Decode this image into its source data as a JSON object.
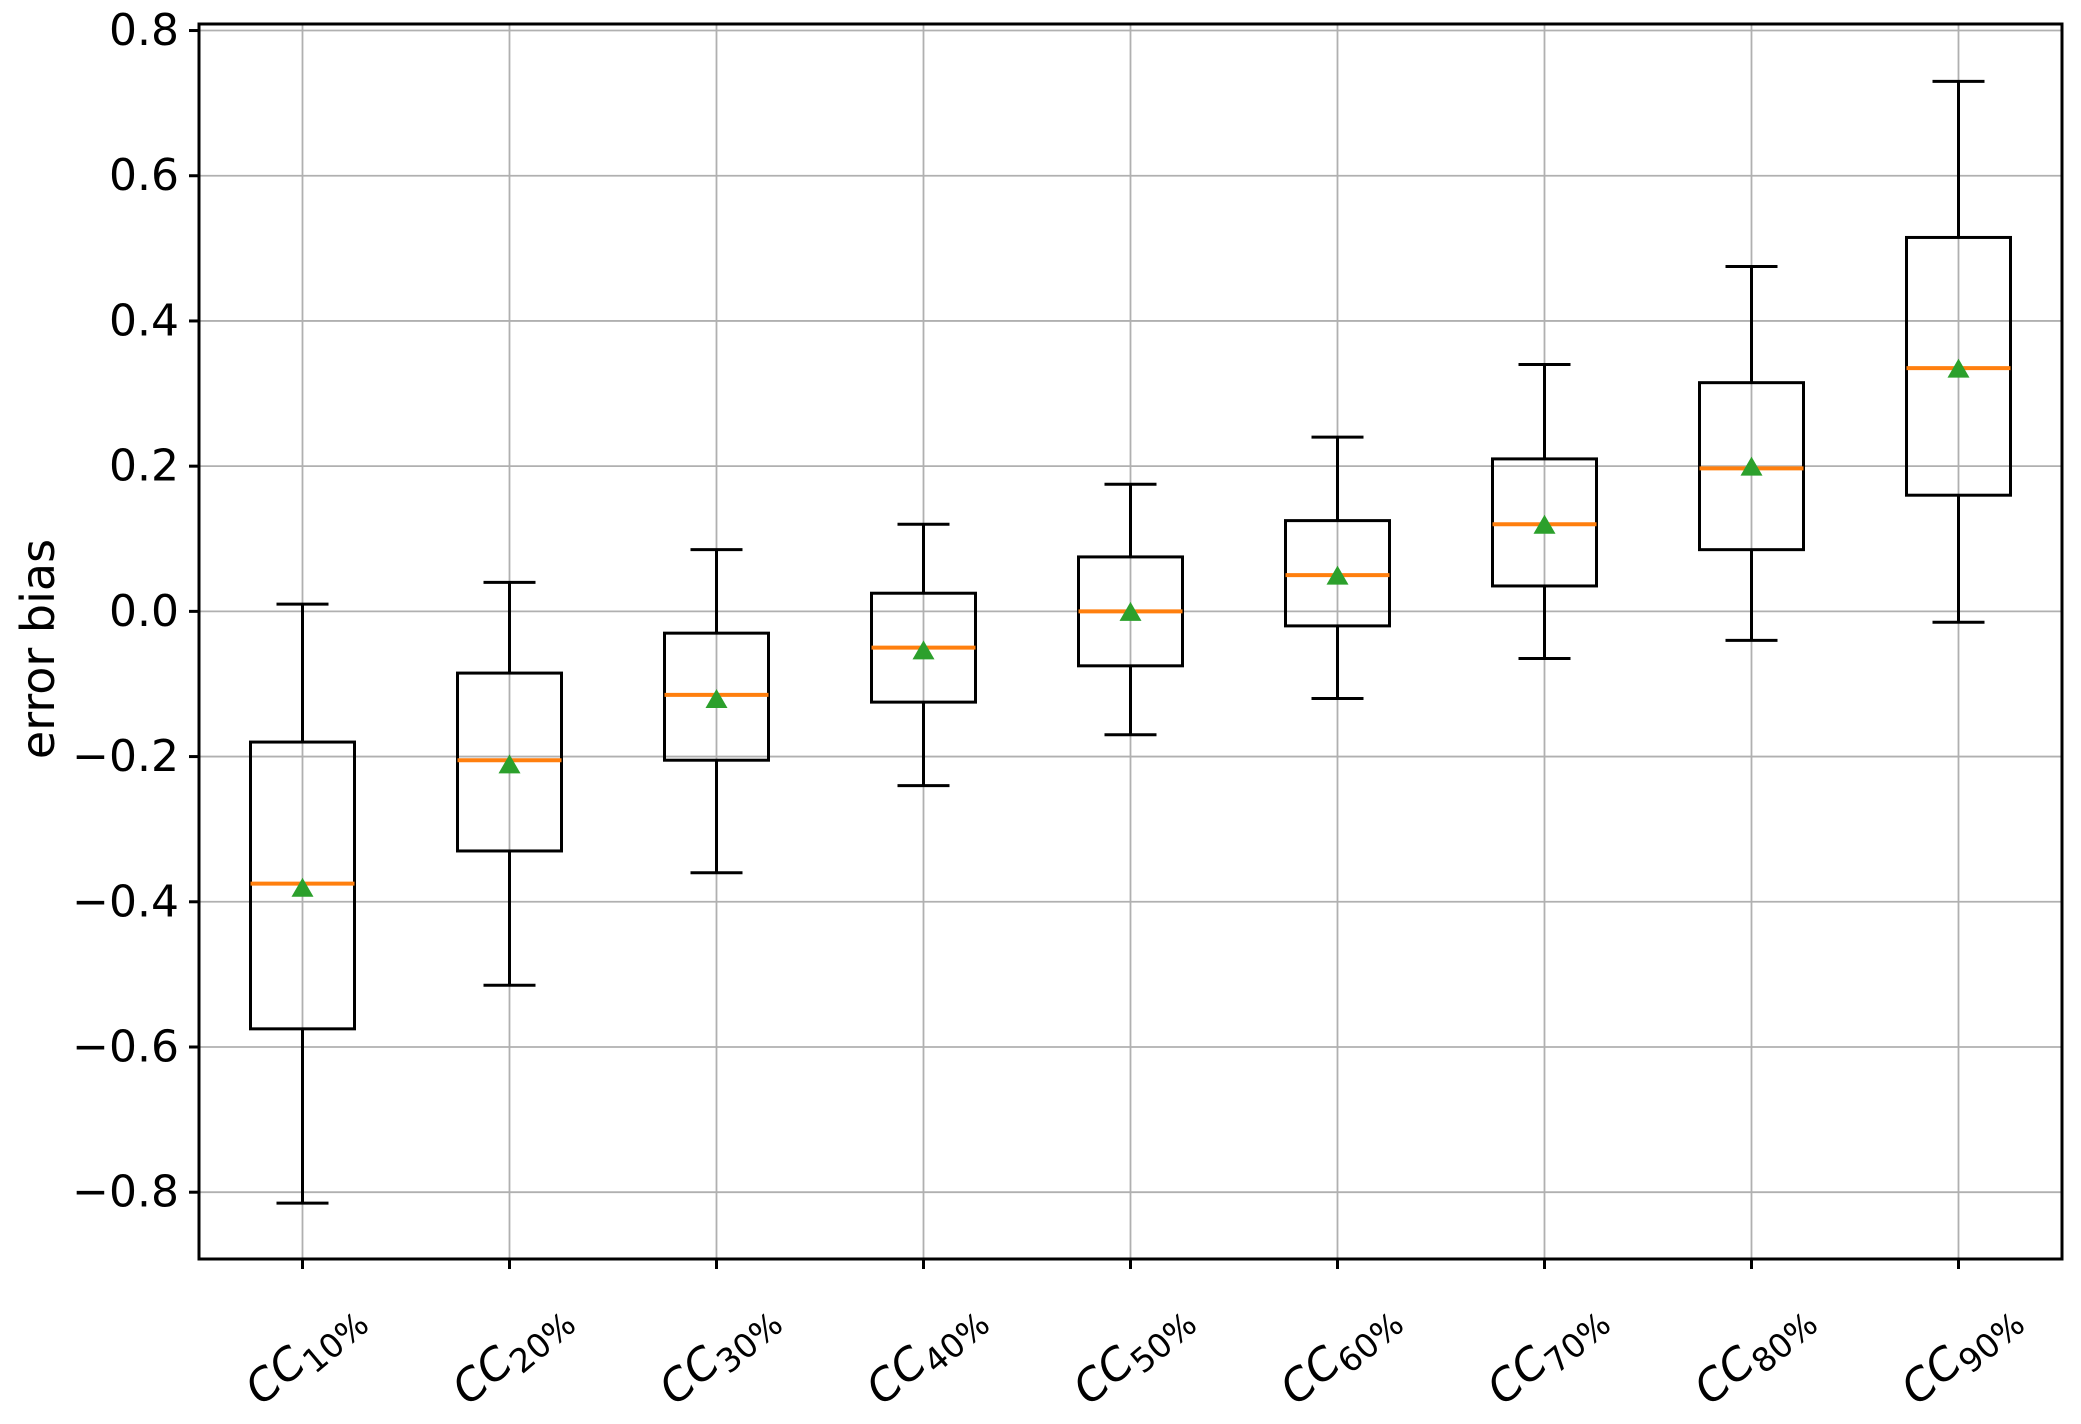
{
  "chart_data": {
    "type": "boxplot",
    "title": "",
    "xlabel": "",
    "ylabel": "error bias",
    "ylim": [
      -0.892,
      0.809
    ],
    "grid": true,
    "legend": null,
    "yticks": [
      0.8,
      0.6,
      0.4,
      0.2,
      0.0,
      -0.2,
      -0.4,
      -0.6,
      -0.8
    ],
    "ytick_labels": [
      "0.8",
      "0.6",
      "0.4",
      "0.2",
      "0.0",
      "−0.2",
      "−0.4",
      "−0.6",
      "−0.8"
    ],
    "categories": [
      {
        "prefix": "CC",
        "sub": "10%"
      },
      {
        "prefix": "CC",
        "sub": "20%"
      },
      {
        "prefix": "CC",
        "sub": "30%"
      },
      {
        "prefix": "CC",
        "sub": "40%"
      },
      {
        "prefix": "CC",
        "sub": "50%"
      },
      {
        "prefix": "CC",
        "sub": "60%"
      },
      {
        "prefix": "CC",
        "sub": "70%"
      },
      {
        "prefix": "CC",
        "sub": "80%"
      },
      {
        "prefix": "CC",
        "sub": "90%"
      }
    ],
    "series": [
      {
        "label": "CC10%",
        "whislo": -0.815,
        "q1": -0.575,
        "med": -0.375,
        "mean": -0.38,
        "q3": -0.18,
        "whishi": 0.01
      },
      {
        "label": "CC20%",
        "whislo": -0.515,
        "q1": -0.33,
        "med": -0.205,
        "mean": -0.21,
        "q3": -0.085,
        "whishi": 0.04
      },
      {
        "label": "CC30%",
        "whislo": -0.36,
        "q1": -0.205,
        "med": -0.115,
        "mean": -0.12,
        "q3": -0.03,
        "whishi": 0.085
      },
      {
        "label": "CC40%",
        "whislo": -0.24,
        "q1": -0.125,
        "med": -0.05,
        "mean": -0.053,
        "q3": 0.025,
        "whishi": 0.12
      },
      {
        "label": "CC50%",
        "whislo": -0.17,
        "q1": -0.075,
        "med": 0.0,
        "mean": 0.0,
        "q3": 0.075,
        "whishi": 0.175
      },
      {
        "label": "CC60%",
        "whislo": -0.12,
        "q1": -0.02,
        "med": 0.05,
        "mean": 0.05,
        "q3": 0.125,
        "whishi": 0.24
      },
      {
        "label": "CC70%",
        "whislo": -0.065,
        "q1": 0.035,
        "med": 0.12,
        "mean": 0.12,
        "q3": 0.21,
        "whishi": 0.34
      },
      {
        "label": "CC80%",
        "whislo": -0.04,
        "q1": 0.085,
        "med": 0.197,
        "mean": 0.2,
        "q3": 0.315,
        "whishi": 0.475
      },
      {
        "label": "CC90%",
        "whislo": -0.015,
        "q1": 0.16,
        "med": 0.335,
        "mean": 0.335,
        "q3": 0.515,
        "whishi": 0.73
      }
    ],
    "colors": {
      "box_line": "#000000",
      "median": "#ff7f0e",
      "mean_marker": "#2ca02c",
      "grid": "#b0b0b0",
      "axis": "#000000",
      "background": "#ffffff"
    },
    "marker": {
      "mean_shape": "triangle-up"
    }
  }
}
